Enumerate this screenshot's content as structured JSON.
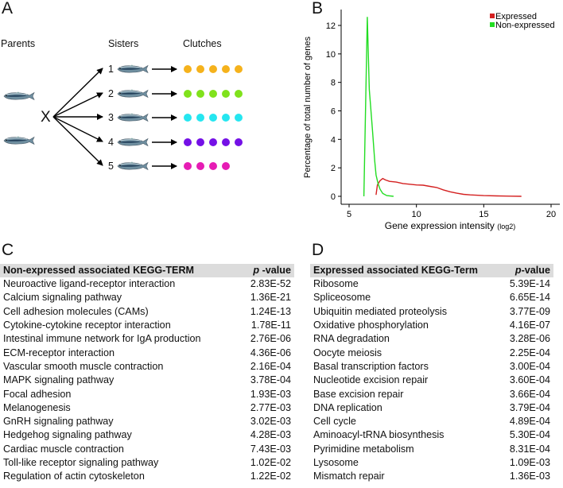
{
  "panelA": {
    "letter": "A",
    "parents_label": "Parents",
    "sisters_label": "Sisters",
    "clutches_label": "Clutches",
    "cross_symbol": "X",
    "sisters": [
      {
        "number": "1",
        "eggs": 5,
        "color": "#f5b21c"
      },
      {
        "number": "2",
        "eggs": 5,
        "color": "#80e21c"
      },
      {
        "number": "3",
        "eggs": 5,
        "color": "#25e6f0"
      },
      {
        "number": "4",
        "eggs": 5,
        "color": "#7410e6"
      },
      {
        "number": "5",
        "eggs": 4,
        "color": "#e61cb4"
      }
    ]
  },
  "panelB": {
    "letter": "B"
  },
  "chart_data": {
    "type": "line",
    "title": "",
    "xlabel": "Gene expression intensity",
    "xlabel_suffix": "(log2)",
    "ylabel": "Percentage of total number of genes",
    "xlim": [
      4,
      21
    ],
    "ylim": [
      0,
      13
    ],
    "xticks": [
      "5",
      "10",
      "15",
      "20"
    ],
    "yticks": [
      "0",
      "2",
      "4",
      "6",
      "8",
      "10",
      "12"
    ],
    "legend_position": "top-right",
    "series": [
      {
        "name": "Expressed",
        "color": "#d42020",
        "x": [
          7.0,
          7.1,
          7.3,
          7.5,
          7.7,
          8.0,
          8.5,
          9.0,
          9.5,
          10.0,
          10.5,
          11.0,
          11.5,
          12.0,
          12.5,
          13.0,
          13.5,
          14.0,
          15.0,
          16.0,
          17.0,
          17.8
        ],
        "y": [
          0.1,
          0.8,
          1.1,
          1.25,
          1.15,
          1.05,
          1.0,
          0.9,
          0.85,
          0.8,
          0.78,
          0.7,
          0.62,
          0.45,
          0.32,
          0.22,
          0.14,
          0.1,
          0.05,
          0.03,
          0.01,
          0.0
        ]
      },
      {
        "name": "Non-expressed",
        "color": "#22dd22",
        "x": [
          6.1,
          6.35,
          6.5,
          6.6,
          6.75,
          6.9,
          7.0,
          7.15,
          7.3,
          7.5,
          7.8,
          8.3
        ],
        "y": [
          0.0,
          12.6,
          7.5,
          6.3,
          4.5,
          2.5,
          1.5,
          0.9,
          0.5,
          0.2,
          0.05,
          0.0
        ]
      }
    ]
  },
  "panelC": {
    "letter": "C",
    "header": {
      "term": "Non-expressed associated KEGG-TERM",
      "p_italic": "p",
      "p_rest": " -value"
    },
    "rows": [
      {
        "term": "Neuroactive ligand-receptor interaction",
        "p": "2.83E-52"
      },
      {
        "term": "Calcium signaling pathway",
        "p": "1.36E-21"
      },
      {
        "term": "Cell adhesion molecules (CAMs)",
        "p": "1.24E-13"
      },
      {
        "term": "Cytokine-cytokine receptor interaction",
        "p": "1.78E-11"
      },
      {
        "term": "Intestinal immune network for IgA production",
        "p": "2.76E-06"
      },
      {
        "term": "ECM-receptor interaction",
        "p": "4.36E-06"
      },
      {
        "term": "Vascular smooth muscle contraction",
        "p": "2.16E-04"
      },
      {
        "term": "MAPK signaling pathway",
        "p": "3.78E-04"
      },
      {
        "term": "Focal adhesion",
        "p": "1.93E-03"
      },
      {
        "term": "Melanogenesis",
        "p": "2.77E-03"
      },
      {
        "term": "GnRH signaling pathway",
        "p": "3.02E-03"
      },
      {
        "term": "Hedgehog signaling pathway",
        "p": "4.28E-03"
      },
      {
        "term": "Cardiac muscle contraction",
        "p": "7.43E-03"
      },
      {
        "term": "Toll-like receptor signaling pathway",
        "p": "1.02E-02"
      },
      {
        "term": "Regulation of actin cytoskeleton",
        "p": "1.22E-02"
      }
    ]
  },
  "panelD": {
    "letter": "D",
    "header": {
      "term": "Expressed associated KEGG-Term",
      "p_italic": "p",
      "p_rest": "-value"
    },
    "rows": [
      {
        "term": "Ribosome",
        "p": "5.39E-14"
      },
      {
        "term": "Spliceosome",
        "p": "6.65E-14"
      },
      {
        "term": "Ubiquitin mediated proteolysis",
        "p": "3.77E-09"
      },
      {
        "term": "Oxidative phosphorylation",
        "p": "4.16E-07"
      },
      {
        "term": "RNA degradation",
        "p": "3.28E-06"
      },
      {
        "term": "Oocyte meiosis",
        "p": "2.25E-04"
      },
      {
        "term": "Basal transcription factors",
        "p": "3.00E-04"
      },
      {
        "term": "Nucleotide excision repair",
        "p": "3.60E-04"
      },
      {
        "term": "Base excision repair",
        "p": "3.66E-04"
      },
      {
        "term": "DNA replication",
        "p": "3.79E-04"
      },
      {
        "term": "Cell cycle",
        "p": "4.89E-04"
      },
      {
        "term": "Aminoacyl-tRNA biosynthesis",
        "p": "5.30E-04"
      },
      {
        "term": "Pyrimidine metabolism",
        "p": "8.31E-04"
      },
      {
        "term": "Lysosome",
        "p": "1.09E-03"
      },
      {
        "term": "Mismatch repair",
        "p": "1.36E-03"
      }
    ]
  }
}
